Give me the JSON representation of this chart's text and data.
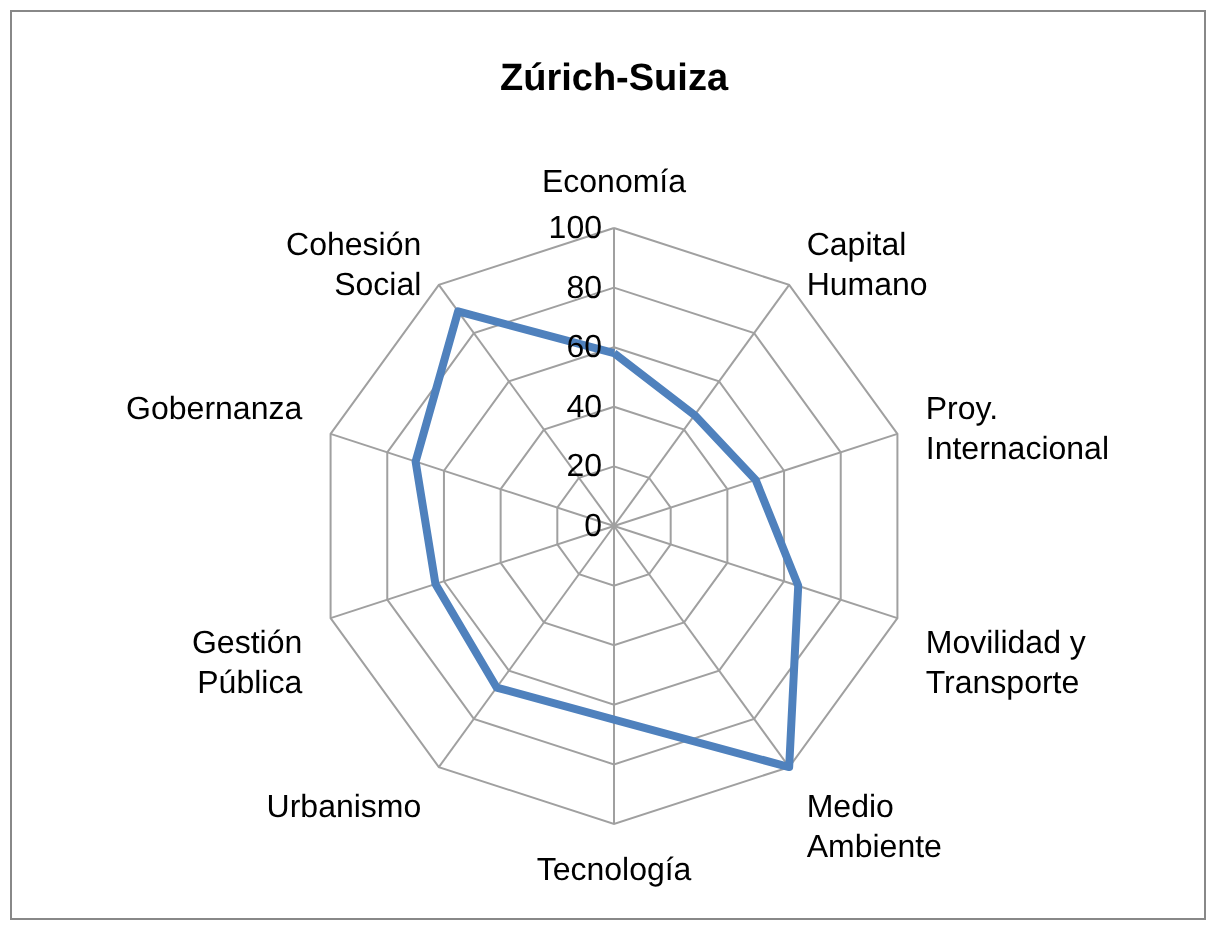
{
  "chart_data": {
    "type": "radar",
    "title": "Zúrich-Suiza",
    "categories": [
      "Economía",
      "Capital Humano",
      "Proy. Internacional",
      "Movilidad y Transporte",
      "Medio Ambiente",
      "Tecnología",
      "Urbanismo",
      "Gestión Pública",
      "Gobernanza",
      "Cohesión Social"
    ],
    "series": [
      {
        "color": "#4f81bd",
        "values": [
          58,
          46,
          50,
          65,
          100,
          65,
          67,
          63,
          70,
          89
        ]
      }
    ],
    "ylim": [
      0,
      100
    ],
    "yticks": [
      0,
      20,
      40,
      60,
      80,
      100
    ],
    "grid": true,
    "marker": "none"
  }
}
